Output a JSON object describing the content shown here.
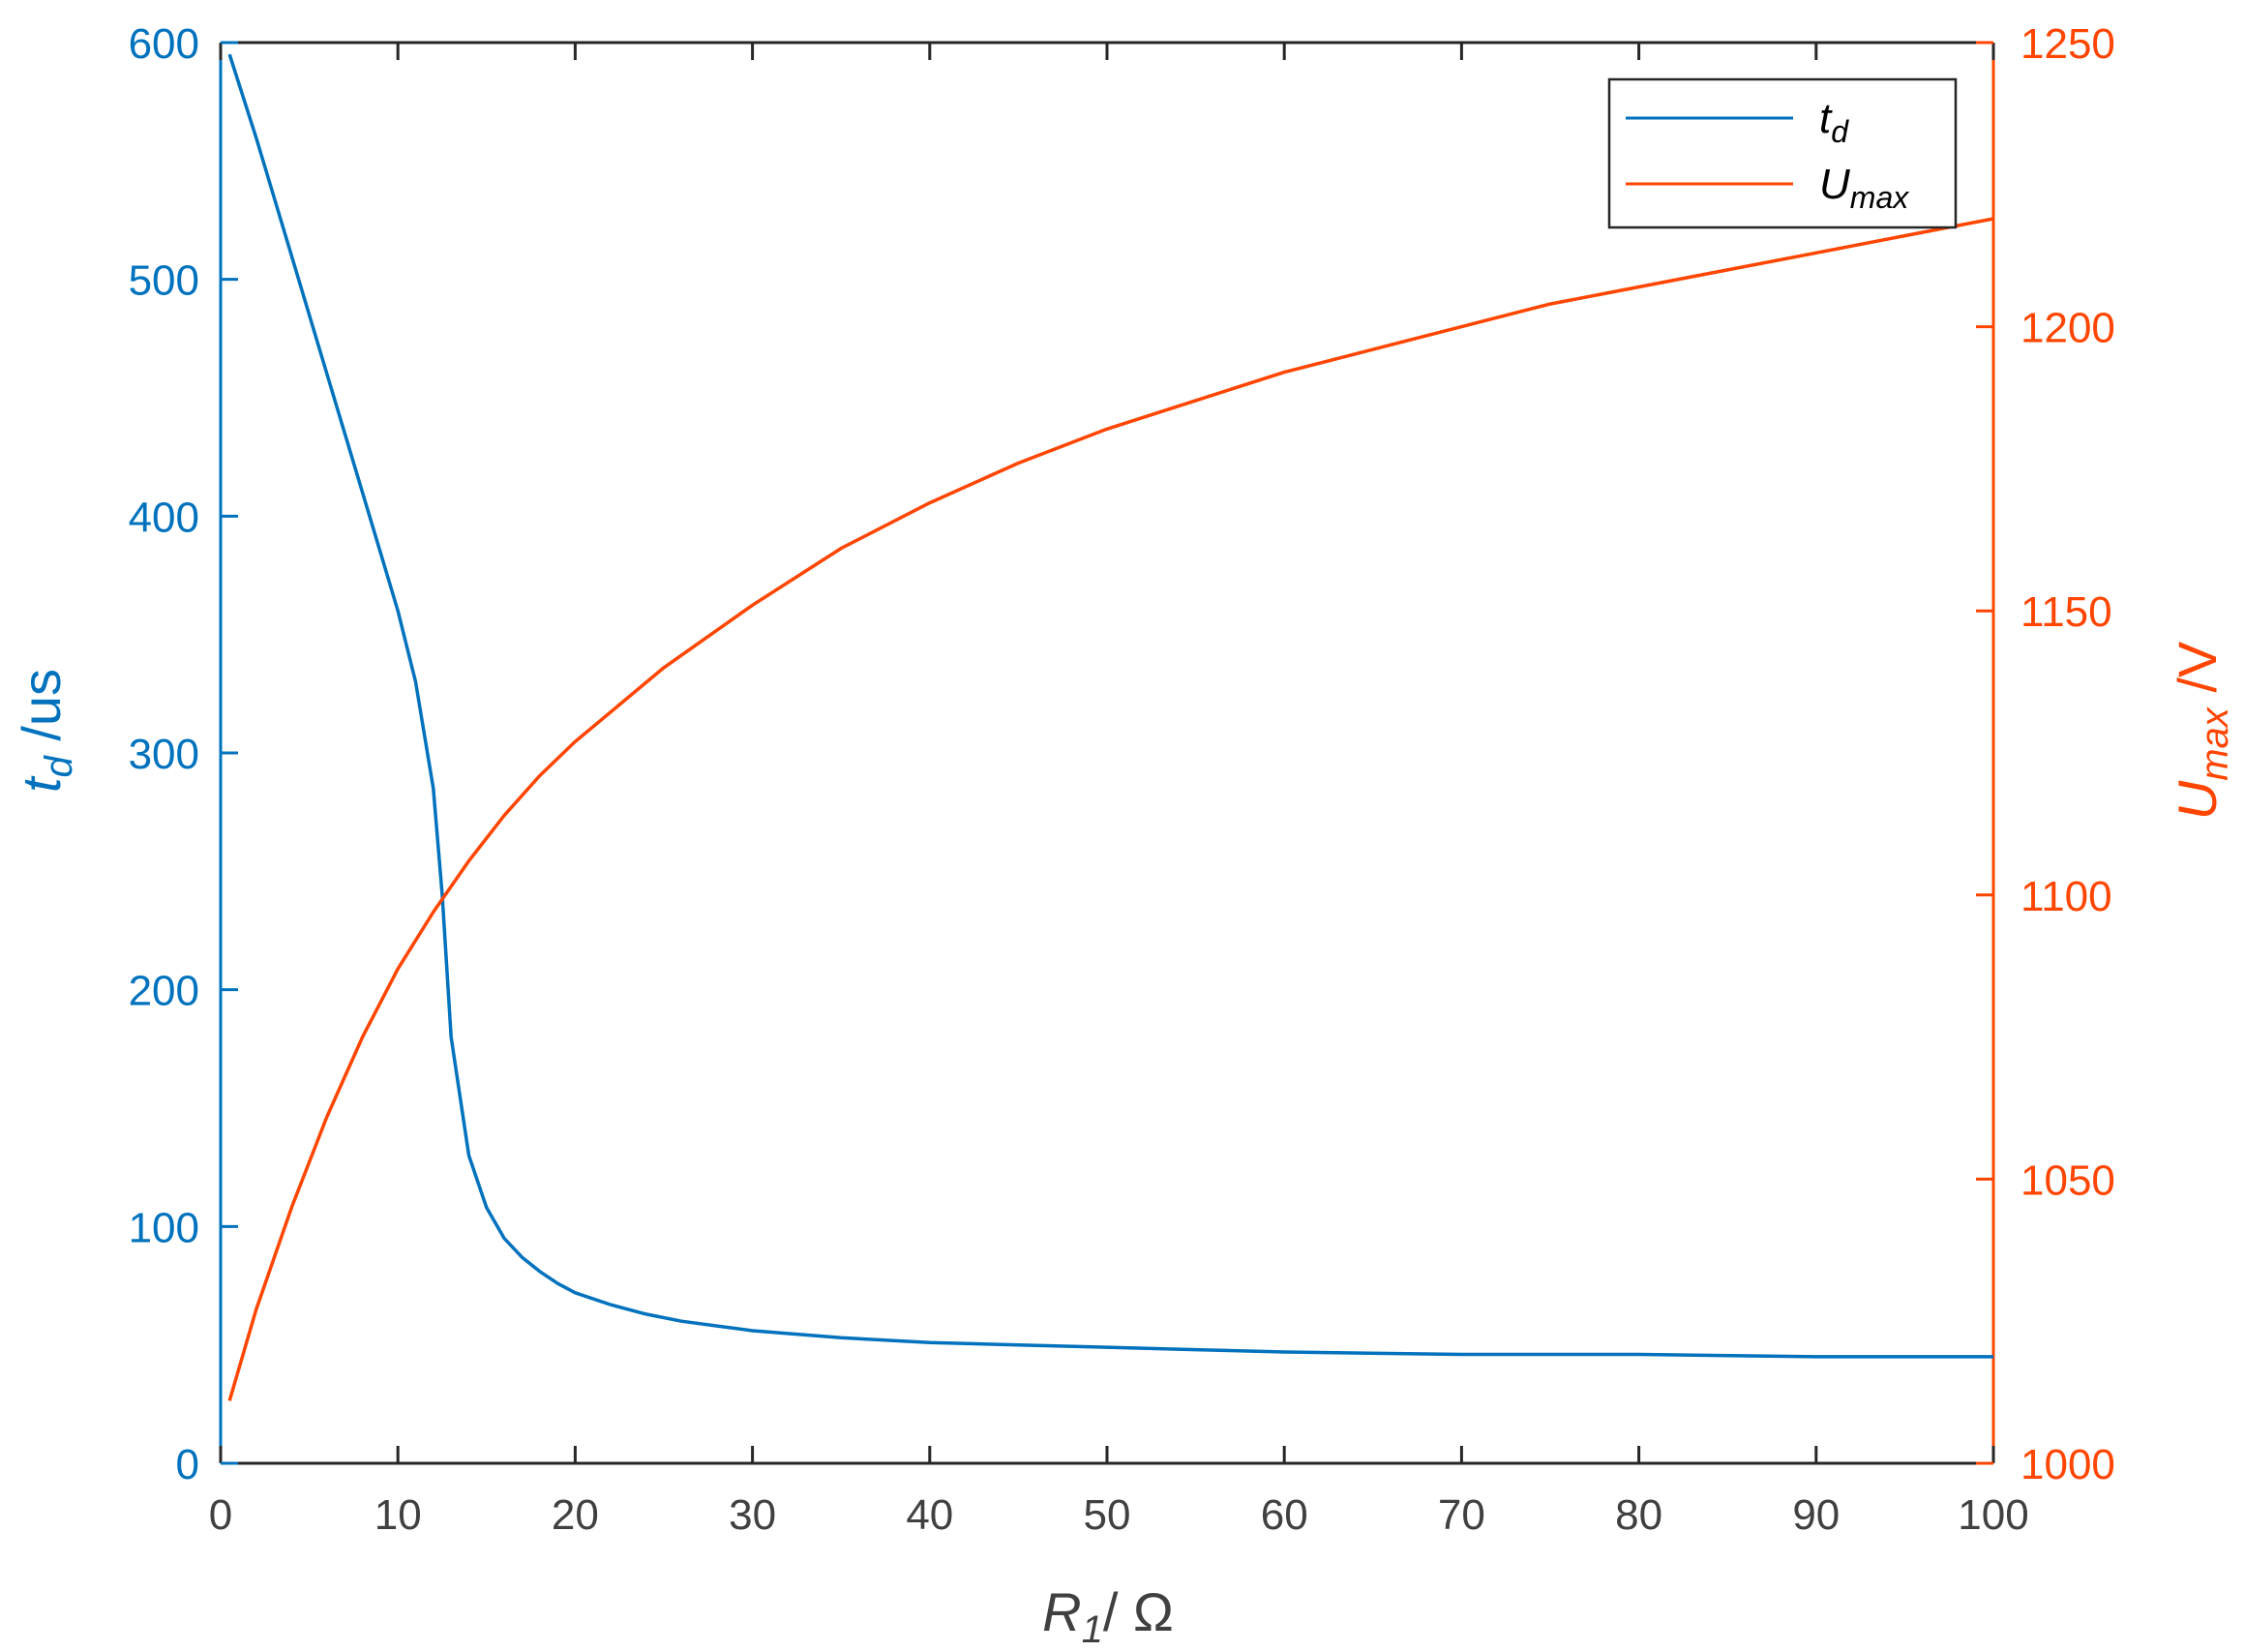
{
  "chart_data": {
    "type": "line",
    "x_axis": {
      "label_main": "R",
      "label_sub": "1",
      "label_rest": "/ Ω",
      "range": [
        0,
        100
      ],
      "ticks": [
        0,
        10,
        20,
        30,
        40,
        50,
        60,
        70,
        80,
        90,
        100
      ],
      "tick_labels": [
        "0",
        "10",
        "20",
        "30",
        "40",
        "50",
        "60",
        "70",
        "80",
        "90",
        "100"
      ]
    },
    "y_left": {
      "label_main": "t",
      "label_sub": "d",
      "label_rest": " /us",
      "range": [
        0,
        600
      ],
      "ticks": [
        0,
        100,
        200,
        300,
        400,
        500,
        600
      ],
      "tick_labels": [
        "0",
        "100",
        "200",
        "300",
        "400",
        "500",
        "600"
      ],
      "color": "#0072BD"
    },
    "y_right": {
      "label_main": "U",
      "label_sub": "max",
      "label_rest": " /V",
      "range": [
        1000,
        1250
      ],
      "ticks": [
        1000,
        1050,
        1100,
        1150,
        1200,
        1250
      ],
      "tick_labels": [
        "1000",
        "1050",
        "1100",
        "1150",
        "1200",
        "1250"
      ],
      "color": "#FF4500"
    },
    "axis_color": "#262626",
    "legend_position": "top-right",
    "grid": false,
    "series": [
      {
        "name_main": "t",
        "name_sub": "d",
        "axis": "left",
        "color": "#0072BD",
        "x": [
          0.5,
          2,
          4,
          6,
          8,
          9,
          10,
          11,
          12,
          12.5,
          13,
          14,
          15,
          16,
          17,
          18,
          19,
          20,
          22,
          24,
          26,
          28,
          30,
          35,
          40,
          45,
          50,
          55,
          60,
          70,
          80,
          90,
          100
        ],
        "y": [
          595,
          560,
          510,
          460,
          410,
          385,
          360,
          330,
          285,
          240,
          180,
          130,
          108,
          95,
          87,
          81,
          76,
          72,
          67,
          63,
          60,
          58,
          56,
          53,
          51,
          50,
          49,
          48,
          47,
          46,
          46,
          45,
          45
        ]
      },
      {
        "name_main": "U",
        "name_sub": "max",
        "axis": "right",
        "color": "#FF4500",
        "x": [
          0.5,
          2,
          4,
          6,
          8,
          10,
          12,
          14,
          16,
          18,
          20,
          25,
          30,
          35,
          40,
          45,
          50,
          55,
          60,
          65,
          70,
          75,
          80,
          85,
          90,
          95,
          100
        ],
        "y": [
          1011,
          1027,
          1045,
          1061,
          1075,
          1087,
          1097,
          1106,
          1114,
          1121,
          1127,
          1140,
          1151,
          1161,
          1169,
          1176,
          1182,
          1187,
          1192,
          1196,
          1200,
          1204,
          1207,
          1210,
          1213,
          1216,
          1219
        ]
      }
    ]
  }
}
